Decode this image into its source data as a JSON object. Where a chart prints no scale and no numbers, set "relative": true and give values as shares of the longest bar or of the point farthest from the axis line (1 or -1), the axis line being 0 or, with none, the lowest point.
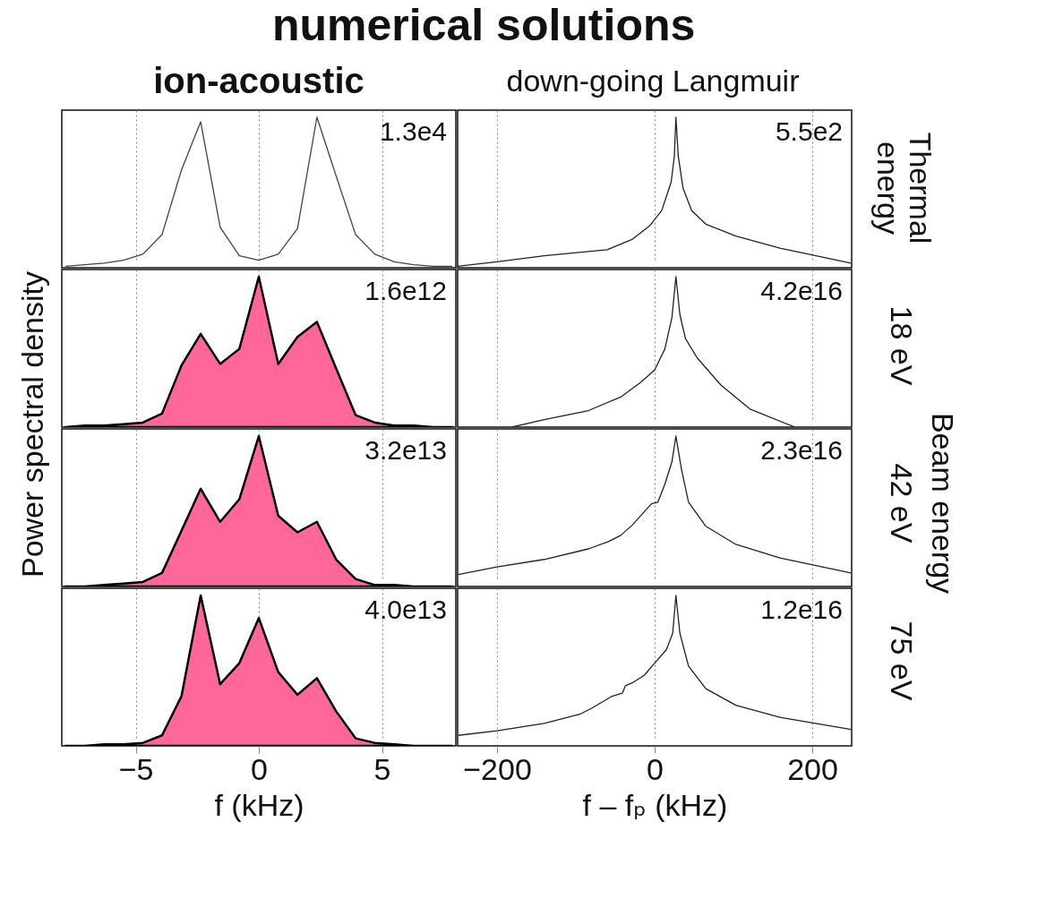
{
  "chart_data": [
    {
      "type": "line",
      "title": "numerical solutions",
      "subtitle": "ion-acoustic",
      "ylabel": "Power spectral density",
      "relative": true,
      "color": "#444444",
      "xlim": [
        -8,
        8
      ],
      "grid": "x",
      "tick_labels": false,
      "annotations": [
        "1.3e4"
      ],
      "x": [
        -7.85,
        -7.07,
        -6.28,
        -5.5,
        -4.71,
        -3.93,
        -3.14,
        -2.36,
        -1.57,
        -0.79,
        0,
        0.79,
        1.57,
        2.36,
        3.14,
        3.93,
        4.71,
        5.5,
        6.28,
        7.07,
        7.85
      ],
      "values": [
        0.01,
        0.02,
        0.03,
        0.05,
        0.09,
        0.22,
        0.65,
        0.97,
        0.27,
        0.08,
        0.05,
        0.09,
        0.26,
        1.0,
        0.61,
        0.22,
        0.09,
        0.04,
        0.02,
        0.01,
        0.01
      ]
    },
    {
      "type": "line",
      "subtitle": "down-going Langmuir",
      "relative": true,
      "color": "#222222",
      "xlim": [
        -250,
        250
      ],
      "grid": "x",
      "tick_labels": false,
      "annotations": [
        "5.5e2",
        "Thermal\nenergy"
      ],
      "x": [
        -250,
        -200,
        -140,
        -60,
        -28,
        -6,
        9,
        21,
        25,
        27,
        30,
        36,
        47,
        65,
        103,
        159,
        249
      ],
      "values": [
        0.01,
        0.04,
        0.08,
        0.12,
        0.19,
        0.28,
        0.38,
        0.57,
        0.74,
        1.0,
        0.74,
        0.53,
        0.38,
        0.29,
        0.21,
        0.13,
        0.03
      ]
    },
    {
      "type": "area",
      "relative": true,
      "color": "#ff6699",
      "xlim": [
        -8,
        8
      ],
      "grid": "x",
      "tick_labels": false,
      "annotations": [
        "1.6e12"
      ],
      "x": [
        -7.85,
        -7.07,
        -6.28,
        -5.5,
        -4.71,
        -3.93,
        -3.14,
        -2.36,
        -1.57,
        -0.79,
        0,
        0.79,
        1.57,
        2.36,
        3.14,
        3.93,
        4.71,
        5.5,
        6.28,
        7.07,
        7.85
      ],
      "values": [
        0,
        0.01,
        0.01,
        0.02,
        0.03,
        0.09,
        0.41,
        0.62,
        0.42,
        0.52,
        1.0,
        0.42,
        0.6,
        0.7,
        0.39,
        0.08,
        0.03,
        0.01,
        0.01,
        0,
        0
      ]
    },
    {
      "type": "line",
      "relative": true,
      "color": "#222222",
      "xlim": [
        -250,
        250
      ],
      "grid": "x",
      "tick_labels": false,
      "annotations": [
        "4.2e16",
        "18 eV"
      ],
      "x": [
        -181,
        -140,
        -84,
        -43,
        -17,
        0,
        13,
        22,
        27,
        32,
        39,
        54,
        84,
        121,
        178
      ],
      "values": [
        0,
        0.05,
        0.11,
        0.2,
        0.3,
        0.38,
        0.52,
        0.73,
        1.0,
        0.75,
        0.59,
        0.46,
        0.28,
        0.12,
        0
      ]
    },
    {
      "type": "area",
      "relative": true,
      "color": "#ff6699",
      "xlim": [
        -8,
        8
      ],
      "grid": "x",
      "tick_labels": false,
      "annotations": [
        "3.2e13"
      ],
      "x": [
        -7.85,
        -7.07,
        -6.28,
        -5.5,
        -4.71,
        -3.93,
        -3.14,
        -2.36,
        -1.57,
        -0.79,
        0,
        0.79,
        1.57,
        2.36,
        3.14,
        3.93,
        4.71,
        5.5,
        6.28,
        7.07,
        7.85
      ],
      "values": [
        0,
        0,
        0.01,
        0.02,
        0.03,
        0.09,
        0.37,
        0.65,
        0.43,
        0.58,
        1.0,
        0.47,
        0.36,
        0.43,
        0.18,
        0.05,
        0.01,
        0.01,
        0,
        0,
        0
      ]
    },
    {
      "type": "line",
      "relative": true,
      "color": "#222222",
      "xlim": [
        -250,
        250
      ],
      "grid": "x",
      "tick_labels": false,
      "annotations": [
        "2.3e16",
        "42 eV",
        "Beam energy"
      ],
      "x": [
        -249,
        -200,
        -140,
        -84,
        -58,
        -43,
        -28,
        -11,
        -4,
        4,
        13,
        22,
        27,
        34,
        43,
        65,
        103,
        159,
        249
      ],
      "values": [
        0.08,
        0.13,
        0.18,
        0.25,
        0.3,
        0.34,
        0.41,
        0.51,
        0.55,
        0.56,
        0.68,
        0.83,
        1.0,
        0.78,
        0.56,
        0.4,
        0.28,
        0.19,
        0.09
      ]
    },
    {
      "type": "area",
      "xlabel": "f (kHz)",
      "relative": true,
      "color": "#ff6699",
      "xlim": [
        -8,
        8
      ],
      "xticks": [
        {
          "value": -5,
          "label": "−5"
        },
        0,
        5
      ],
      "grid": "x",
      "tick_labels": "x",
      "annotations": [
        "4.0e13"
      ],
      "x": [
        -7.85,
        -7.07,
        -6.28,
        -5.5,
        -4.71,
        -3.93,
        -3.14,
        -2.36,
        -1.57,
        -0.79,
        0,
        0.79,
        1.57,
        2.36,
        3.14,
        3.93,
        4.71,
        5.5,
        6.28,
        7.07,
        7.85
      ],
      "values": [
        0,
        0,
        0.01,
        0.01,
        0.02,
        0.07,
        0.33,
        1.0,
        0.41,
        0.55,
        0.85,
        0.49,
        0.34,
        0.45,
        0.23,
        0.05,
        0.02,
        0.01,
        0,
        0,
        0
      ]
    },
    {
      "type": "line",
      "xlabel": "f – fₚ (kHz)",
      "relative": true,
      "color": "#222222",
      "xlim": [
        -250,
        250
      ],
      "xticks": [
        {
          "value": -200,
          "label": "−200"
        },
        0,
        200
      ],
      "grid": "x",
      "tick_labels": "x",
      "annotations": [
        "1.2e16",
        "75 eV"
      ],
      "x": [
        -249,
        -200,
        -140,
        -95,
        -80,
        -54,
        -41,
        -37,
        -28,
        -13,
        0,
        15,
        23,
        27,
        32,
        43,
        65,
        103,
        159,
        249
      ],
      "values": [
        0.07,
        0.1,
        0.15,
        0.21,
        0.25,
        0.33,
        0.35,
        0.4,
        0.42,
        0.47,
        0.55,
        0.64,
        0.75,
        1.0,
        0.75,
        0.53,
        0.38,
        0.27,
        0.19,
        0.11
      ]
    }
  ]
}
